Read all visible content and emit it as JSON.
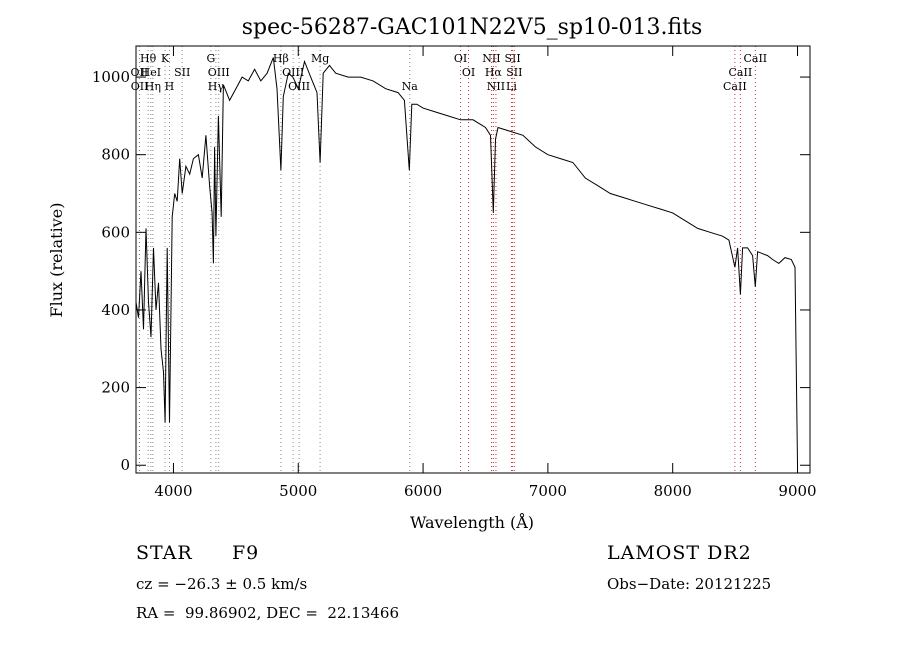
{
  "chart_data": {
    "type": "line",
    "title": "spec-56287-GAC101N22V5_sp10-013.fits",
    "xlabel": "Wavelength (Å)",
    "ylabel": "Flux (relative)",
    "xlim": [
      3700,
      9100
    ],
    "ylim": [
      -20,
      1080
    ],
    "x_ticks": [
      4000,
      5000,
      6000,
      7000,
      8000,
      9000
    ],
    "y_ticks": [
      0,
      200,
      400,
      600,
      800,
      1000
    ],
    "grid": false,
    "series": [
      {
        "color": "#000000",
        "x": [
          3700,
          3720,
          3740,
          3760,
          3780,
          3800,
          3820,
          3840,
          3860,
          3880,
          3900,
          3920,
          3933,
          3950,
          3968,
          3990,
          4010,
          4030,
          4050,
          4070,
          4100,
          4130,
          4160,
          4200,
          4230,
          4260,
          4290,
          4310,
          4320,
          4330,
          4340,
          4360,
          4383,
          4400,
          4450,
          4500,
          4550,
          4600,
          4650,
          4700,
          4750,
          4800,
          4830,
          4861,
          4880,
          4920,
          4957,
          5000,
          5050,
          5100,
          5150,
          5175,
          5200,
          5250,
          5300,
          5400,
          5500,
          5600,
          5700,
          5800,
          5850,
          5890,
          5910,
          5950,
          6000,
          6100,
          6200,
          6300,
          6400,
          6500,
          6540,
          6563,
          6580,
          6600,
          6700,
          6800,
          6900,
          7000,
          7100,
          7200,
          7300,
          7400,
          7500,
          7600,
          7700,
          7800,
          7900,
          8000,
          8100,
          8200,
          8300,
          8400,
          8450,
          8498,
          8520,
          8542,
          8560,
          8600,
          8640,
          8662,
          8680,
          8720,
          8760,
          8800,
          8850,
          8900,
          8950,
          8980,
          9000
        ],
        "y": [
          420,
          380,
          500,
          350,
          610,
          420,
          330,
          560,
          400,
          470,
          300,
          240,
          110,
          560,
          110,
          640,
          700,
          680,
          790,
          700,
          770,
          750,
          790,
          800,
          740,
          850,
          720,
          650,
          520,
          820,
          590,
          900,
          640,
          980,
          940,
          970,
          1000,
          990,
          1020,
          990,
          1010,
          1050,
          970,
          760,
          950,
          1010,
          1000,
          970,
          1040,
          1000,
          960,
          780,
          1010,
          1030,
          1010,
          1000,
          1000,
          990,
          970,
          960,
          940,
          760,
          930,
          930,
          920,
          910,
          900,
          890,
          890,
          870,
          850,
          650,
          840,
          870,
          860,
          850,
          820,
          800,
          790,
          780,
          740,
          720,
          700,
          690,
          680,
          670,
          660,
          650,
          630,
          610,
          600,
          590,
          580,
          510,
          560,
          440,
          560,
          560,
          540,
          460,
          550,
          545,
          540,
          530,
          520,
          535,
          530,
          510,
          0
        ]
      }
    ],
    "lines": [
      {
        "name": "Hθ",
        "wave": 3797,
        "row": 0,
        "color": "#888888"
      },
      {
        "name": "K",
        "wave": 3933,
        "row": 0,
        "color": "#888888"
      },
      {
        "name": "OII",
        "wave": 3727,
        "row": 1,
        "color": "#888888"
      },
      {
        "name": "HeI",
        "wave": 3819,
        "row": 1,
        "color": "#888888"
      },
      {
        "name": "SII",
        "wave": 4070,
        "row": 1,
        "color": "#888888"
      },
      {
        "name": "OII",
        "wave": 3729,
        "row": 2,
        "color": "#888888"
      },
      {
        "name": "Hη",
        "wave": 3835,
        "row": 2,
        "color": "#888888"
      },
      {
        "name": "H",
        "wave": 3968,
        "row": 2,
        "color": "#888888"
      },
      {
        "name": "G",
        "wave": 4300,
        "row": 0,
        "color": "#888888"
      },
      {
        "name": "OIII",
        "wave": 4363,
        "row": 1,
        "color": "#888888"
      },
      {
        "name": "Hγ",
        "wave": 4340,
        "row": 2,
        "color": "#888888"
      },
      {
        "name": "Hβ",
        "wave": 4861,
        "row": 0,
        "color": "#888888"
      },
      {
        "name": "OIII",
        "wave": 4959,
        "row": 1,
        "color": "#888888"
      },
      {
        "name": "OIII",
        "wave": 5007,
        "row": 2,
        "color": "#888888"
      },
      {
        "name": "Mg",
        "wave": 5175,
        "row": 0,
        "color": "#888888"
      },
      {
        "name": "Na",
        "wave": 5893,
        "row": 2,
        "color": "#888888"
      },
      {
        "name": "OI",
        "wave": 6300,
        "row": 0,
        "color": "#cc3333"
      },
      {
        "name": "OI",
        "wave": 6364,
        "row": 1,
        "color": "#cc3333"
      },
      {
        "name": "NII",
        "wave": 6548,
        "row": 0,
        "color": "#cc3333"
      },
      {
        "name": "Hα",
        "wave": 6563,
        "row": 1,
        "color": "#cc3333"
      },
      {
        "name": "NII",
        "wave": 6584,
        "row": 2,
        "color": "#cc3333"
      },
      {
        "name": "SII",
        "wave": 6717,
        "row": 0,
        "color": "#cc3333"
      },
      {
        "name": "SII",
        "wave": 6731,
        "row": 1,
        "color": "#cc3333"
      },
      {
        "name": "Li",
        "wave": 6708,
        "row": 2,
        "color": "#cc3333"
      },
      {
        "name": "CaII",
        "wave": 8662,
        "row": 0,
        "color": "#cc3333"
      },
      {
        "name": "CaII",
        "wave": 8542,
        "row": 1,
        "color": "#cc3333"
      },
      {
        "name": "CaII",
        "wave": 8498,
        "row": 2,
        "color": "#cc3333"
      }
    ]
  },
  "footer": {
    "class_label": "STAR",
    "subclass": "F9",
    "survey": "LAMOST DR2",
    "redshift_line": "cz = −26.3 ± 0.5 km/s",
    "obs_date": "Obs−Date: 20121225",
    "coords": "RA =  99.86902, DEC =  22.13466"
  }
}
